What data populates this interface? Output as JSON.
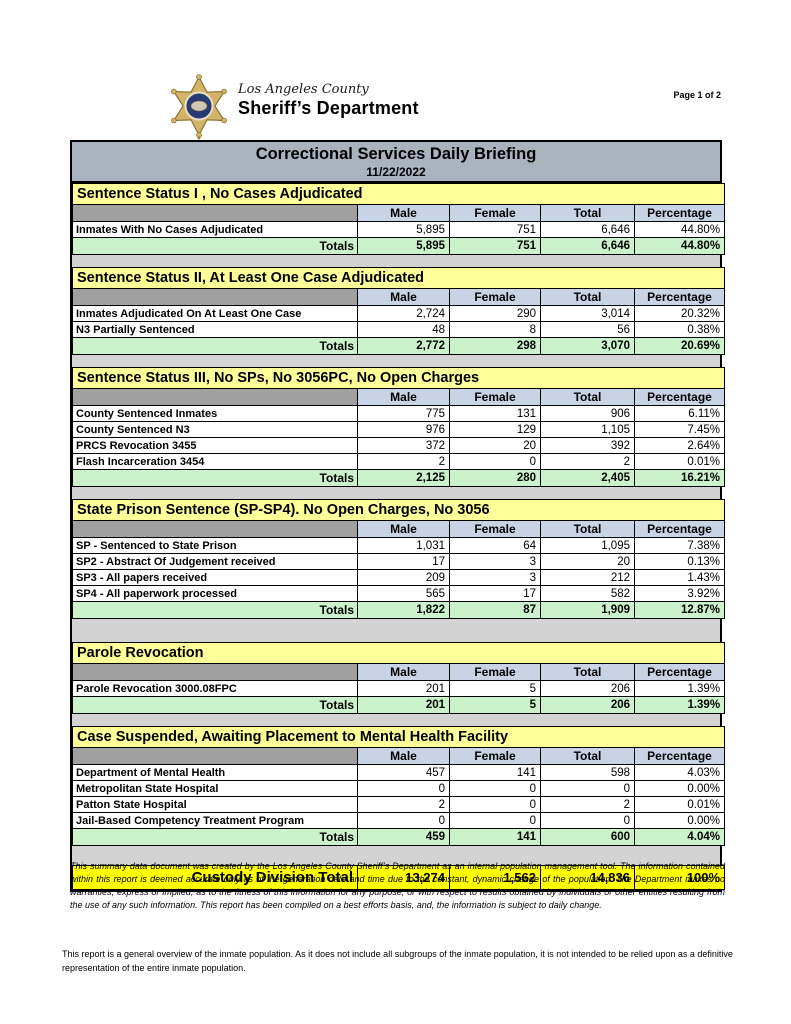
{
  "header": {
    "county": "Los Angeles County",
    "department": "Sheriff’s Department",
    "page": "Page 1 of 2"
  },
  "title": {
    "main": "Correctional Services Daily Briefing",
    "date": "11/22/2022"
  },
  "columns": [
    "Male",
    "Female",
    "Total",
    "Percentage"
  ],
  "totals_label": "Totals",
  "sections": [
    {
      "title": "Sentence Status I , No Cases Adjudicated",
      "rows": [
        {
          "label": "Inmates With No Cases Adjudicated",
          "male": "5,895",
          "female": "751",
          "total": "6,646",
          "pct": "44.80%"
        }
      ],
      "totals": {
        "male": "5,895",
        "female": "751",
        "total": "6,646",
        "pct": "44.80%"
      }
    },
    {
      "title": "Sentence Status II, At Least One Case Adjudicated",
      "rows": [
        {
          "label": "Inmates Adjudicated On At Least One Case",
          "male": "2,724",
          "female": "290",
          "total": "3,014",
          "pct": "20.32%"
        },
        {
          "label": "N3 Partially Sentenced",
          "male": "48",
          "female": "8",
          "total": "56",
          "pct": "0.38%"
        }
      ],
      "totals": {
        "male": "2,772",
        "female": "298",
        "total": "3,070",
        "pct": "20.69%"
      }
    },
    {
      "title": "Sentence Status III, No SPs, No 3056PC, No Open Charges",
      "rows": [
        {
          "label": "County Sentenced Inmates",
          "male": "775",
          "female": "131",
          "total": "906",
          "pct": "6.11%"
        },
        {
          "label": "County Sentenced N3",
          "male": "976",
          "female": "129",
          "total": "1,105",
          "pct": "7.45%"
        },
        {
          "label": "PRCS Revocation 3455",
          "male": "372",
          "female": "20",
          "total": "392",
          "pct": "2.64%"
        },
        {
          "label": "Flash Incarceration 3454",
          "male": "2",
          "female": "0",
          "total": "2",
          "pct": "0.01%"
        }
      ],
      "totals": {
        "male": "2,125",
        "female": "280",
        "total": "2,405",
        "pct": "16.21%"
      }
    },
    {
      "title": "State Prison Sentence (SP-SP4). No Open Charges, No 3056",
      "rows": [
        {
          "label": "SP - Sentenced to State Prison",
          "male": "1,031",
          "female": "64",
          "total": "1,095",
          "pct": "7.38%"
        },
        {
          "label": "SP2 - Abstract Of Judgement received",
          "male": "17",
          "female": "3",
          "total": "20",
          "pct": "0.13%"
        },
        {
          "label": "SP3 - All papers received",
          "male": "209",
          "female": "3",
          "total": "212",
          "pct": "1.43%"
        },
        {
          "label": "SP4 - All paperwork processed",
          "male": "565",
          "female": "17",
          "total": "582",
          "pct": "3.92%"
        }
      ],
      "totals": {
        "male": "1,822",
        "female": "87",
        "total": "1,909",
        "pct": "12.87%"
      }
    },
    {
      "title": "Parole Revocation",
      "rows": [
        {
          "label": "Parole Revocation 3000.08FPC",
          "male": "201",
          "female": "5",
          "total": "206",
          "pct": "1.39%"
        }
      ],
      "totals": {
        "male": "201",
        "female": "5",
        "total": "206",
        "pct": "1.39%"
      }
    },
    {
      "title": "Case Suspended, Awaiting Placement to Mental Health Facility",
      "rows": [
        {
          "label": "Department of Mental Health",
          "male": "457",
          "female": "141",
          "total": "598",
          "pct": "4.03%"
        },
        {
          "label": "Metropolitan State Hospital",
          "male": "0",
          "female": "0",
          "total": "0",
          "pct": "0.00%"
        },
        {
          "label": "Patton State Hospital",
          "male": "2",
          "female": "0",
          "total": "2",
          "pct": "0.01%"
        },
        {
          "label": "Jail-Based Competency Treatment Program",
          "male": "0",
          "female": "0",
          "total": "0",
          "pct": "0.00%"
        }
      ],
      "totals": {
        "male": "459",
        "female": "141",
        "total": "600",
        "pct": "4.04%"
      }
    }
  ],
  "grand_total": {
    "label": "Custody Division Total",
    "male": "13,274",
    "female": "1,562",
    "total": "14,836",
    "pct": "100%"
  },
  "footer": {
    "disclaimer": "This summary data document was created by the Los Angeles County Sheriff’s Department as an internal population management tool.  The information contained within this report is deemed accurate only as of the generation date and time due to the constant, dynamic change of the population.  The Department makes no warranties, express or implied, as to the fitness of this information for any purpose, or with respect to results obtained by individuals or other entities resulting from the use of any such information.  This report has been compiled on a best efforts basis, and, the information is subject to daily change.",
    "note": "This report is a general overview of the inmate population.  As it does not include all subgroups of the inmate population, it is not intended to be relied upon as a definitive representation of the entire inmate population."
  },
  "colors": {
    "title_bar_bg": "#a9b3bf",
    "section_header_bg": "#ffff99",
    "column_header_bg": "#c9d3e6",
    "blank_header_bg": "#a0a0a0",
    "totals_row_bg": "#ccf2cc",
    "grand_total_bg": "#ffff00"
  }
}
